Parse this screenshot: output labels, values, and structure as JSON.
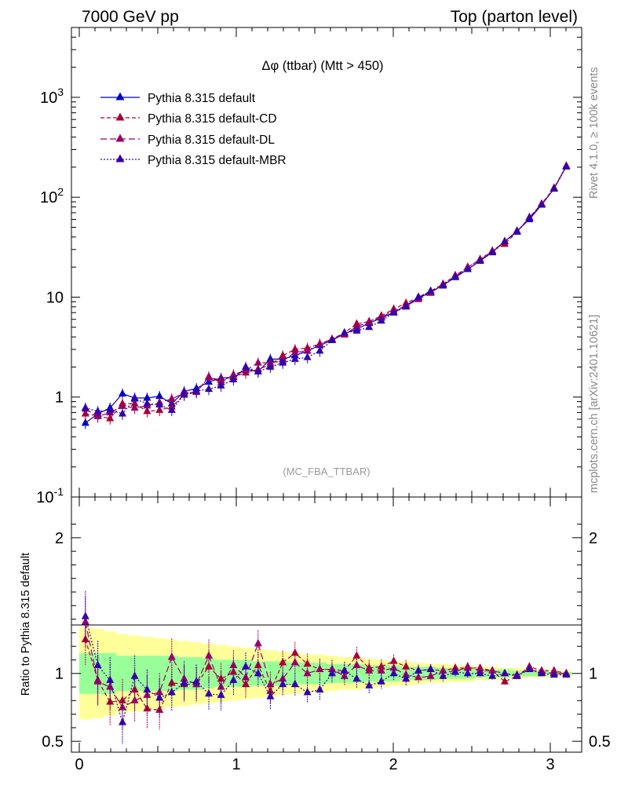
{
  "header": {
    "left": "7000 GeV pp",
    "right": "Top (parton level)"
  },
  "side_text": {
    "rivet": "Rivet 4.1.0, ≥ 100k events",
    "mcplots": "mcplots.cern.ch [arXiv:2401.10621]"
  },
  "plot_title": "Δφ (ttbar) (Mtt > 450)",
  "analysis_label": "(MC_FBA_TTBAR)",
  "legend": [
    {
      "label": "Pythia 8.315 default",
      "color": "#0000cc",
      "dash": ""
    },
    {
      "label": "Pythia 8.315 default-CD",
      "color": "#aa0033",
      "dash": "5,3"
    },
    {
      "label": "Pythia 8.315 default-DL",
      "color": "#990066",
      "dash": "8,4"
    },
    {
      "label": "Pythia 8.315 default-MBR",
      "color": "#3300aa",
      "dash": "2,2"
    }
  ],
  "chart_data": [
    {
      "type": "line",
      "scale": "log",
      "xlim": [
        -0.05,
        3.2
      ],
      "ylim": [
        0.1,
        5000
      ],
      "ytick_labels": [
        "10^-1",
        "1",
        "10",
        "10^2",
        "10^3"
      ],
      "x": [
        0.039,
        0.118,
        0.196,
        0.275,
        0.353,
        0.432,
        0.511,
        0.589,
        0.668,
        0.746,
        0.825,
        0.903,
        0.982,
        1.06,
        1.139,
        1.217,
        1.296,
        1.374,
        1.453,
        1.532,
        1.61,
        1.689,
        1.767,
        1.846,
        1.924,
        2.003,
        2.081,
        2.16,
        2.238,
        2.317,
        2.395,
        2.474,
        2.553,
        2.631,
        2.71,
        2.788,
        2.867,
        2.945,
        3.024,
        3.102
      ],
      "series": [
        {
          "name": "Pythia 8.315 default",
          "values": [
            0.55,
            0.68,
            0.78,
            1.08,
            0.98,
            0.98,
            1.02,
            0.86,
            1.14,
            1.22,
            1.42,
            1.55,
            1.58,
            1.9,
            1.8,
            2.4,
            2.4,
            2.6,
            2.9,
            3.3,
            3.7,
            4.3,
            4.8,
            5.5,
            6.2,
            7.0,
            8.3,
            9.8,
            11.2,
            13.2,
            15.8,
            19.0,
            23.0,
            28.5,
            36.0,
            46.0,
            60.0,
            84.0,
            122.0,
            205.0
          ]
        },
        {
          "name": "Pythia 8.315 default-CD",
          "values": [
            0.68,
            0.65,
            0.61,
            0.86,
            0.86,
            0.72,
            0.74,
            0.8,
            1.05,
            1.12,
            1.58,
            1.48,
            1.6,
            1.75,
            1.9,
            2.1,
            2.6,
            3.0,
            3.1,
            3.4,
            3.8,
            4.4,
            5.4,
            5.7,
            6.5,
            7.6,
            8.7,
            10.0,
            11.5,
            13.5,
            16.5,
            19.8,
            24.0,
            29.0,
            34.0,
            45.0,
            63.0,
            86.0,
            124.0,
            205.0
          ]
        },
        {
          "name": "Pythia 8.315 default-DL",
          "values": [
            0.76,
            0.64,
            0.7,
            0.81,
            0.78,
            0.82,
            0.88,
            0.96,
            1.1,
            1.12,
            1.6,
            1.4,
            1.68,
            1.85,
            2.2,
            2.2,
            2.3,
            2.8,
            2.9,
            3.4,
            3.8,
            4.2,
            5.1,
            5.6,
            6.3,
            7.3,
            8.2,
            9.5,
            11.0,
            13.5,
            16.0,
            20.0,
            23.5,
            29.0,
            36.0,
            45.5,
            62.0,
            85.0,
            122.0,
            205.0
          ]
        },
        {
          "name": "Pythia 8.315 default-MBR",
          "values": [
            0.78,
            0.72,
            0.74,
            0.68,
            0.96,
            0.86,
            0.84,
            0.74,
            1.06,
            1.15,
            1.2,
            1.3,
            1.5,
            2.0,
            1.8,
            2.0,
            2.2,
            2.4,
            2.5,
            2.9,
            3.7,
            4.4,
            4.6,
            5.0,
            5.8,
            7.0,
            8.0,
            10.0,
            11.5,
            13.0,
            16.0,
            19.0,
            23.0,
            28.0,
            36.0,
            45.0,
            62.0,
            84.0,
            121.0,
            202.0
          ]
        }
      ]
    },
    {
      "type": "line",
      "ylabel": "Ratio to Pythia 8.315 default",
      "xlim": [
        -0.05,
        3.2
      ],
      "ylim": [
        0.42,
        2.3
      ],
      "xtick_labels": [
        "0",
        "1",
        "2",
        "3"
      ],
      "ytick_labels": [
        "0.5",
        "1",
        "2"
      ],
      "band_inner": [
        0.15,
        0.15,
        0.15,
        0.13,
        0.13,
        0.13,
        0.13,
        0.13,
        0.12,
        0.12,
        0.11,
        0.1,
        0.1,
        0.1,
        0.09,
        0.09,
        0.09,
        0.08,
        0.08,
        0.08,
        0.07,
        0.07,
        0.07,
        0.06,
        0.06,
        0.06,
        0.05,
        0.05,
        0.05,
        0.04,
        0.04,
        0.04,
        0.03,
        0.03,
        0.03,
        0.02,
        0.02,
        0.02,
        0.01,
        0.01
      ],
      "band_outer": [
        0.34,
        0.33,
        0.31,
        0.29,
        0.28,
        0.27,
        0.26,
        0.25,
        0.24,
        0.23,
        0.22,
        0.21,
        0.2,
        0.19,
        0.18,
        0.17,
        0.16,
        0.15,
        0.14,
        0.14,
        0.13,
        0.12,
        0.12,
        0.11,
        0.1,
        0.09,
        0.09,
        0.08,
        0.07,
        0.07,
        0.06,
        0.06,
        0.05,
        0.05,
        0.04,
        0.04,
        0.03,
        0.03,
        0.02,
        0.02
      ],
      "series": [
        {
          "name": "Pythia 8.315 default-CD",
          "values": [
            1.25,
            0.95,
            0.79,
            0.8,
            0.88,
            0.74,
            0.73,
            0.93,
            0.92,
            0.92,
            1.05,
            0.96,
            1.01,
            0.92,
            1.06,
            0.87,
            1.08,
            1.15,
            1.07,
            1.03,
            1.03,
            1.02,
            1.13,
            1.04,
            1.05,
            1.09,
            1.05,
            1.02,
            1.03,
            1.02,
            1.04,
            1.04,
            1.04,
            1.02,
            0.94,
            0.98,
            1.05,
            1.02,
            1.02,
            1.0
          ]
        },
        {
          "name": "Pythia 8.315 default-DL",
          "values": [
            1.38,
            0.94,
            0.9,
            0.75,
            0.8,
            0.84,
            0.86,
            1.12,
            0.96,
            0.92,
            1.13,
            0.9,
            1.06,
            0.97,
            1.22,
            0.92,
            0.96,
            1.08,
            1.0,
            1.03,
            1.03,
            0.98,
            1.06,
            1.02,
            1.02,
            1.04,
            0.99,
            0.97,
            0.98,
            1.02,
            1.01,
            1.05,
            1.02,
            1.02,
            1.0,
            0.99,
            1.03,
            1.01,
            1.0,
            1.0
          ]
        },
        {
          "name": "Pythia 8.315 default-MBR",
          "values": [
            1.42,
            1.06,
            0.95,
            0.64,
            0.98,
            0.88,
            0.82,
            0.86,
            0.93,
            0.94,
            0.85,
            0.84,
            0.95,
            1.05,
            1.0,
            0.83,
            0.92,
            0.92,
            0.86,
            0.88,
            1.0,
            1.02,
            0.96,
            0.91,
            0.94,
            1.0,
            0.96,
            1.02,
            1.03,
            0.98,
            1.01,
            1.0,
            1.0,
            0.98,
            1.0,
            0.98,
            1.03,
            1.0,
            0.99,
            0.99
          ]
        }
      ]
    }
  ]
}
